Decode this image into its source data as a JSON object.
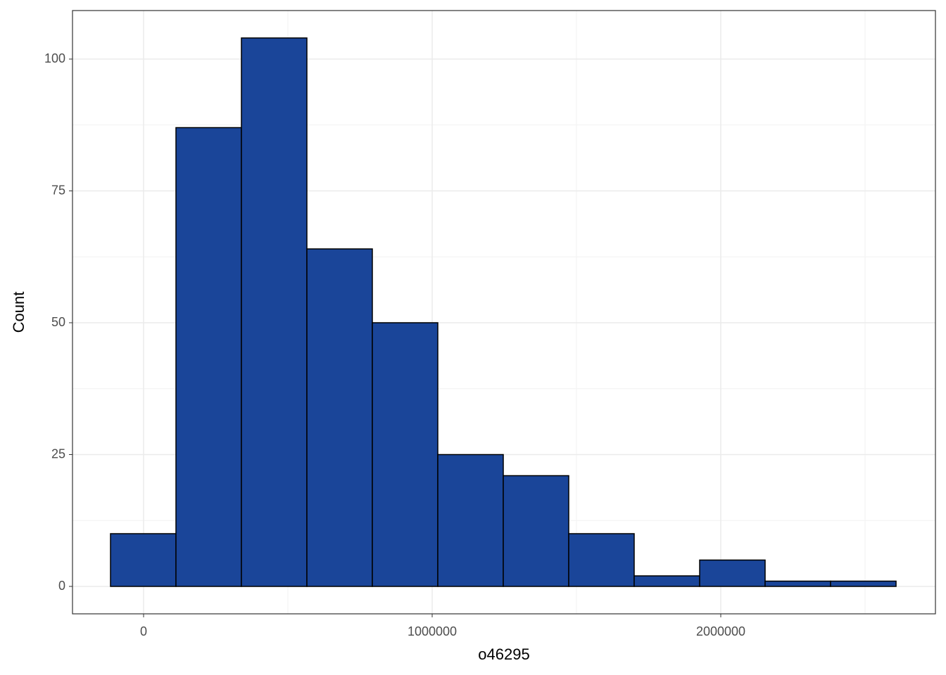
{
  "chart_data": {
    "type": "histogram",
    "x_label": "o46295",
    "y_label": "Count",
    "bins": [
      -114600,
      112200,
      339000,
      565900,
      792700,
      1019500,
      1246400,
      1473200,
      1700000,
      1926900,
      2153700,
      2380500,
      2607400
    ],
    "counts": [
      10,
      87,
      104,
      64,
      50,
      25,
      21,
      10,
      2,
      5,
      1,
      1
    ],
    "color": "#1a4599",
    "xlim": [
      -246300,
      2743900
    ],
    "xticks": [
      0,
      1000000,
      2000000
    ],
    "ylim": [
      -5.2,
      109.2
    ],
    "yticks": [
      0,
      25,
      50,
      75,
      100
    ],
    "grid": true
  }
}
